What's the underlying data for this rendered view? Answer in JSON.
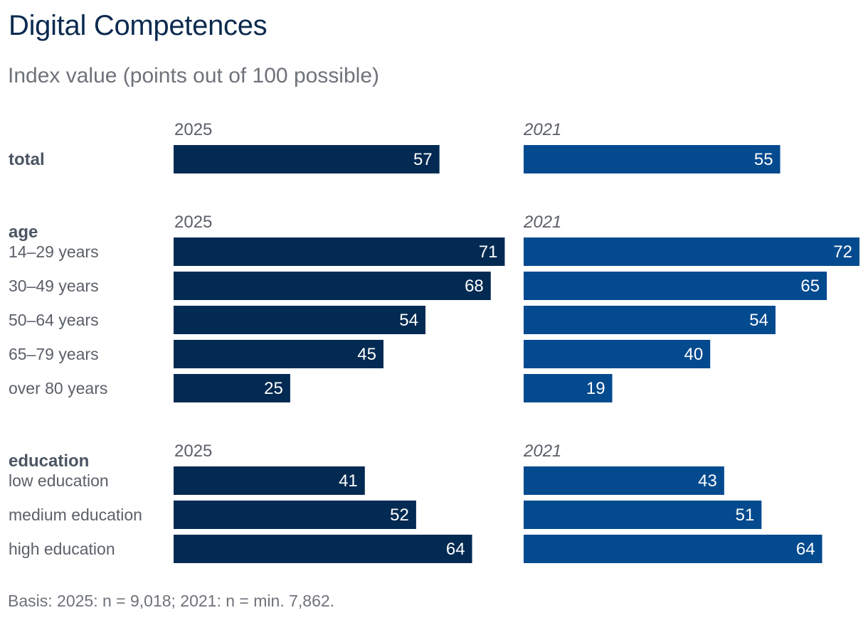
{
  "title": "Digital Competences",
  "subtitle": "Index value (points out of 100 possible)",
  "footnote": "Basis: 2025: n = 9,018; 2021: n = min. 7,862.",
  "colors": {
    "series_2025": "#022a52",
    "series_2021": "#044a8f"
  },
  "chart_data": {
    "type": "bar",
    "orientation": "horizontal",
    "xlim": [
      0,
      72
    ],
    "grid": false,
    "legend": "none",
    "series_labels": [
      "2025",
      "2021"
    ],
    "groups": [
      {
        "name": "total",
        "categories": [
          ""
        ],
        "values_2025": [
          57
        ],
        "values_2021": [
          55
        ]
      },
      {
        "name": "age",
        "categories": [
          "14–29 years",
          "30–49 years",
          "50–64 years",
          "65–79 years",
          "over 80 years"
        ],
        "values_2025": [
          71,
          68,
          54,
          45,
          25
        ],
        "values_2021": [
          72,
          65,
          54,
          40,
          19
        ]
      },
      {
        "name": "education",
        "categories": [
          "low education",
          "medium education",
          "high education"
        ],
        "values_2025": [
          41,
          52,
          64
        ],
        "values_2021": [
          43,
          51,
          64
        ]
      }
    ]
  }
}
